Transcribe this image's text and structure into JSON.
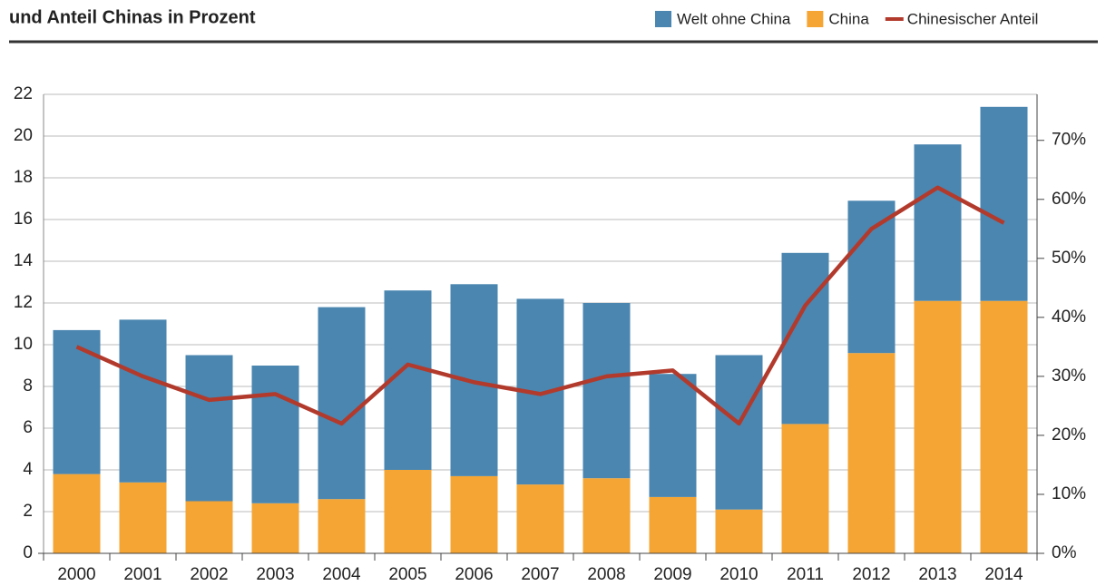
{
  "chart_data": {
    "type": "bar",
    "stacked": true,
    "title": "und Anteil Chinas in Prozent",
    "categories": [
      "2000",
      "2001",
      "2002",
      "2003",
      "2004",
      "2005",
      "2006",
      "2007",
      "2008",
      "2009",
      "2010",
      "2011",
      "2012",
      "2013",
      "2014"
    ],
    "series": [
      {
        "name": "Welt ohne China",
        "color": "#4a86b0",
        "values": [
          6.9,
          7.8,
          7.0,
          6.6,
          9.2,
          8.6,
          9.2,
          8.9,
          8.4,
          5.9,
          7.4,
          8.2,
          7.3,
          7.5,
          9.3
        ]
      },
      {
        "name": "China",
        "color": "#f5a534",
        "values": [
          3.8,
          3.4,
          2.5,
          2.4,
          2.6,
          4.0,
          3.7,
          3.3,
          3.6,
          2.7,
          2.1,
          6.2,
          9.6,
          12.1,
          12.1
        ]
      },
      {
        "name": "Chinesischer Anteil",
        "color": "#b23a2c",
        "type": "line",
        "axis": "y2",
        "values": [
          35,
          30,
          26,
          27,
          22,
          32,
          29,
          27,
          30,
          31,
          22,
          42,
          55,
          62,
          56
        ]
      }
    ],
    "ylim": [
      0,
      22
    ],
    "yticks": [
      0,
      2,
      4,
      6,
      8,
      10,
      12,
      14,
      16,
      18,
      20,
      22
    ],
    "y2lim": [
      0,
      77.8
    ],
    "y2ticks": [
      {
        "value": 0,
        "label": "0%"
      },
      {
        "value": 10,
        "label": "10%"
      },
      {
        "value": 20,
        "label": "20%"
      },
      {
        "value": 30,
        "label": "30%"
      },
      {
        "value": 40,
        "label": "40%"
      },
      {
        "value": 50,
        "label": "50%"
      },
      {
        "value": 60,
        "label": "60%"
      },
      {
        "value": 70,
        "label": "70%"
      }
    ],
    "grid": true
  }
}
